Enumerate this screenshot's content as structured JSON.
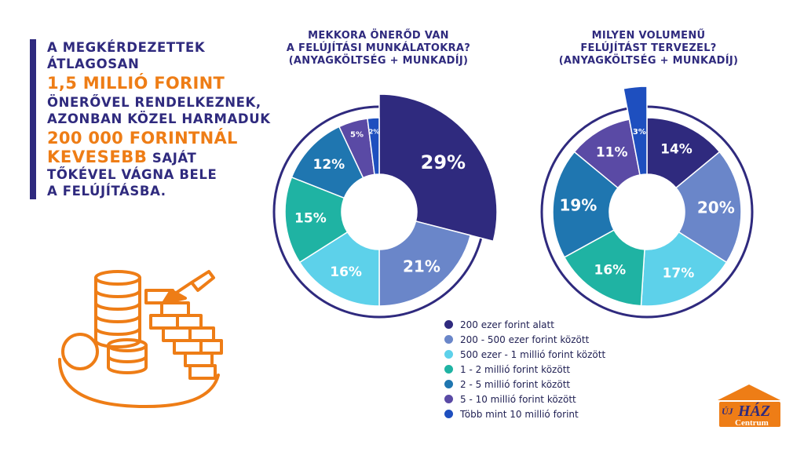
{
  "quote": {
    "line1": "A MEGKÉRDEZETTEK",
    "line2": "ÁTLAGOSAN",
    "highlight1": "1,5 MILLIÓ FORINT",
    "line3": "ÖNERŐVEL RENDELKEZNEK,",
    "line4": "AZONBAN KÖZEL HARMADUK",
    "highlight2": "200 000 FORINTNÁL",
    "highlight3": "KEVESEBB",
    "line5_rest": " SAJÁT",
    "line6": "TŐKÉVEL VÁGNA BELE",
    "line7": "A FELÚJÍTÁSBA."
  },
  "chart1": {
    "title_line1": "MEKKORA ÖNERŐD VAN",
    "title_line2": "A FELÚJÍTÁSI MUNKÁLATOKRA?",
    "title_line3": "(ANYAGKÖLTSÉG + MUNKADÍJ)"
  },
  "chart2": {
    "title_line1": "MILYEN VOLUMENŰ",
    "title_line2": "FELÚJÍTÁST TERVEZEL?",
    "title_line3": "(ANYAGKÖLTSÉG + MUNKADÍJ)"
  },
  "legend": [
    {
      "label": "200 ezer forint alatt",
      "color": "#2f2a7e"
    },
    {
      "label": "200 - 500 ezer forint között",
      "color": "#6a86c9"
    },
    {
      "label": "500 ezer - 1 millió forint között",
      "color": "#5dd1ea"
    },
    {
      "label": "1 - 2 millió forint között",
      "color": "#1fb3a3"
    },
    {
      "label": "2 - 5 millió forint között",
      "color": "#1f76b0"
    },
    {
      "label": "5 - 10 millió forint között",
      "color": "#5a4aa5"
    },
    {
      "label": "Több mint 10 millió forint",
      "color": "#1e4fbf"
    }
  ],
  "logo": {
    "line1": "ÚJ",
    "line2": "HÁZ",
    "line3": "Centrum"
  },
  "chart_data": [
    {
      "type": "pie",
      "title": "MEKKORA ÖNERŐD VAN A FELÚJÍTÁSI MUNKÁLATOKRA? (ANYAGKÖLTSÉG + MUNKADÍJ)",
      "categories": [
        "200 ezer forint alatt",
        "200 - 500 ezer forint között",
        "500 ezer - 1 millió forint között",
        "1 - 2 millió forint között",
        "2 - 5 millió forint között",
        "5 - 10 millió forint között",
        "Több mint 10 millió forint"
      ],
      "values": [
        29,
        21,
        16,
        15,
        12,
        5,
        2
      ],
      "labels": [
        "29%",
        "21%",
        "16%",
        "15%",
        "12%",
        "5%",
        "2%"
      ],
      "highlight_index": 0
    },
    {
      "type": "pie",
      "title": "MILYEN VOLUMENŰ FELÚJÍTÁST TERVEZEL? (ANYAGKÖLTSÉG + MUNKADÍJ)",
      "categories": [
        "200 ezer forint alatt",
        "200 - 500 ezer forint között",
        "500 ezer - 1 millió forint között",
        "1 - 2 millió forint között",
        "2 - 5 millió forint között",
        "5 - 10 millió forint között",
        "Több mint 10 millió forint"
      ],
      "values": [
        14,
        20,
        17,
        16,
        19,
        11,
        3
      ],
      "labels": [
        "14%",
        "20%",
        "17%",
        "16%",
        "19%",
        "11%",
        "3%"
      ],
      "highlight_index": 6
    }
  ]
}
